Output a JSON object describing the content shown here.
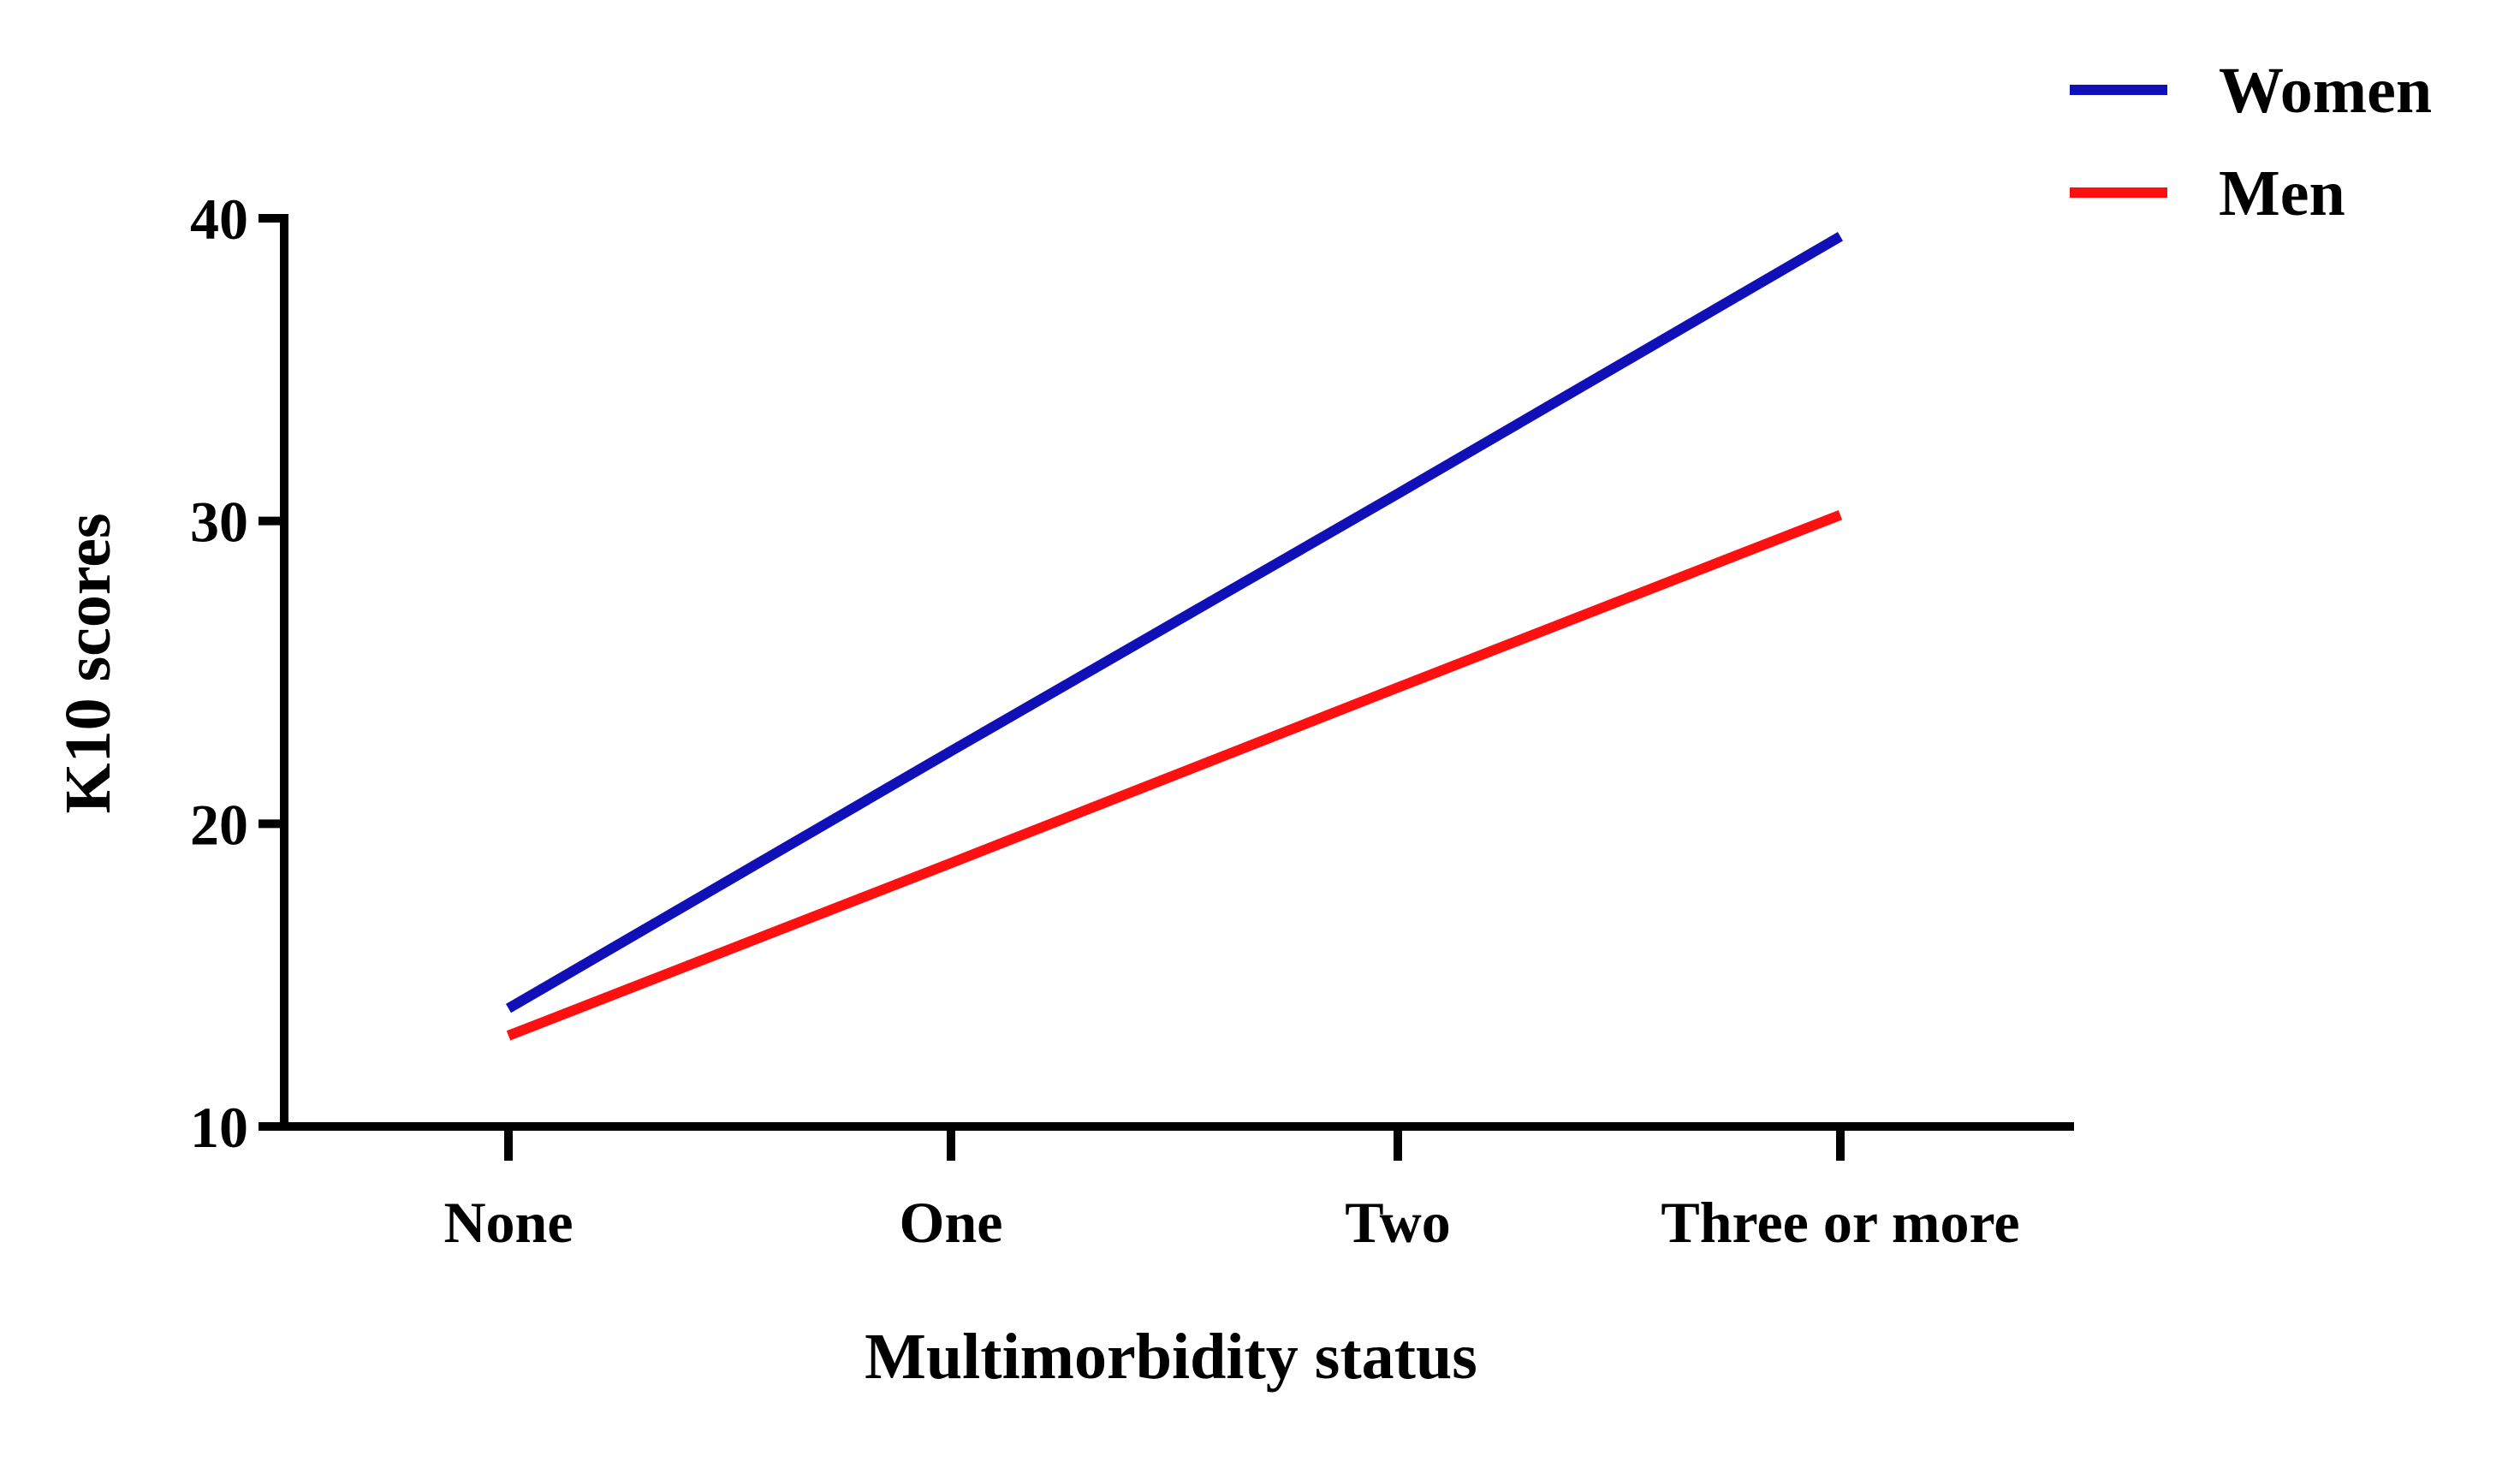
{
  "chart_data": {
    "type": "line",
    "title": "",
    "xlabel": "Multimorbidity status",
    "ylabel": "K10 scores",
    "categories": [
      "None",
      "One",
      "Two",
      "Three or more"
    ],
    "ylim": [
      10,
      40
    ],
    "yticks": [
      10,
      20,
      30,
      40
    ],
    "grid": false,
    "legend_position": "top-right",
    "series": [
      {
        "name": "Women",
        "color": "#1010b8",
        "values": [
          13.9,
          22.4,
          30.9,
          39.4
        ]
      },
      {
        "name": "Men",
        "color": "#ff1010",
        "values": [
          13.0,
          18.7,
          24.5,
          30.2
        ]
      }
    ]
  }
}
